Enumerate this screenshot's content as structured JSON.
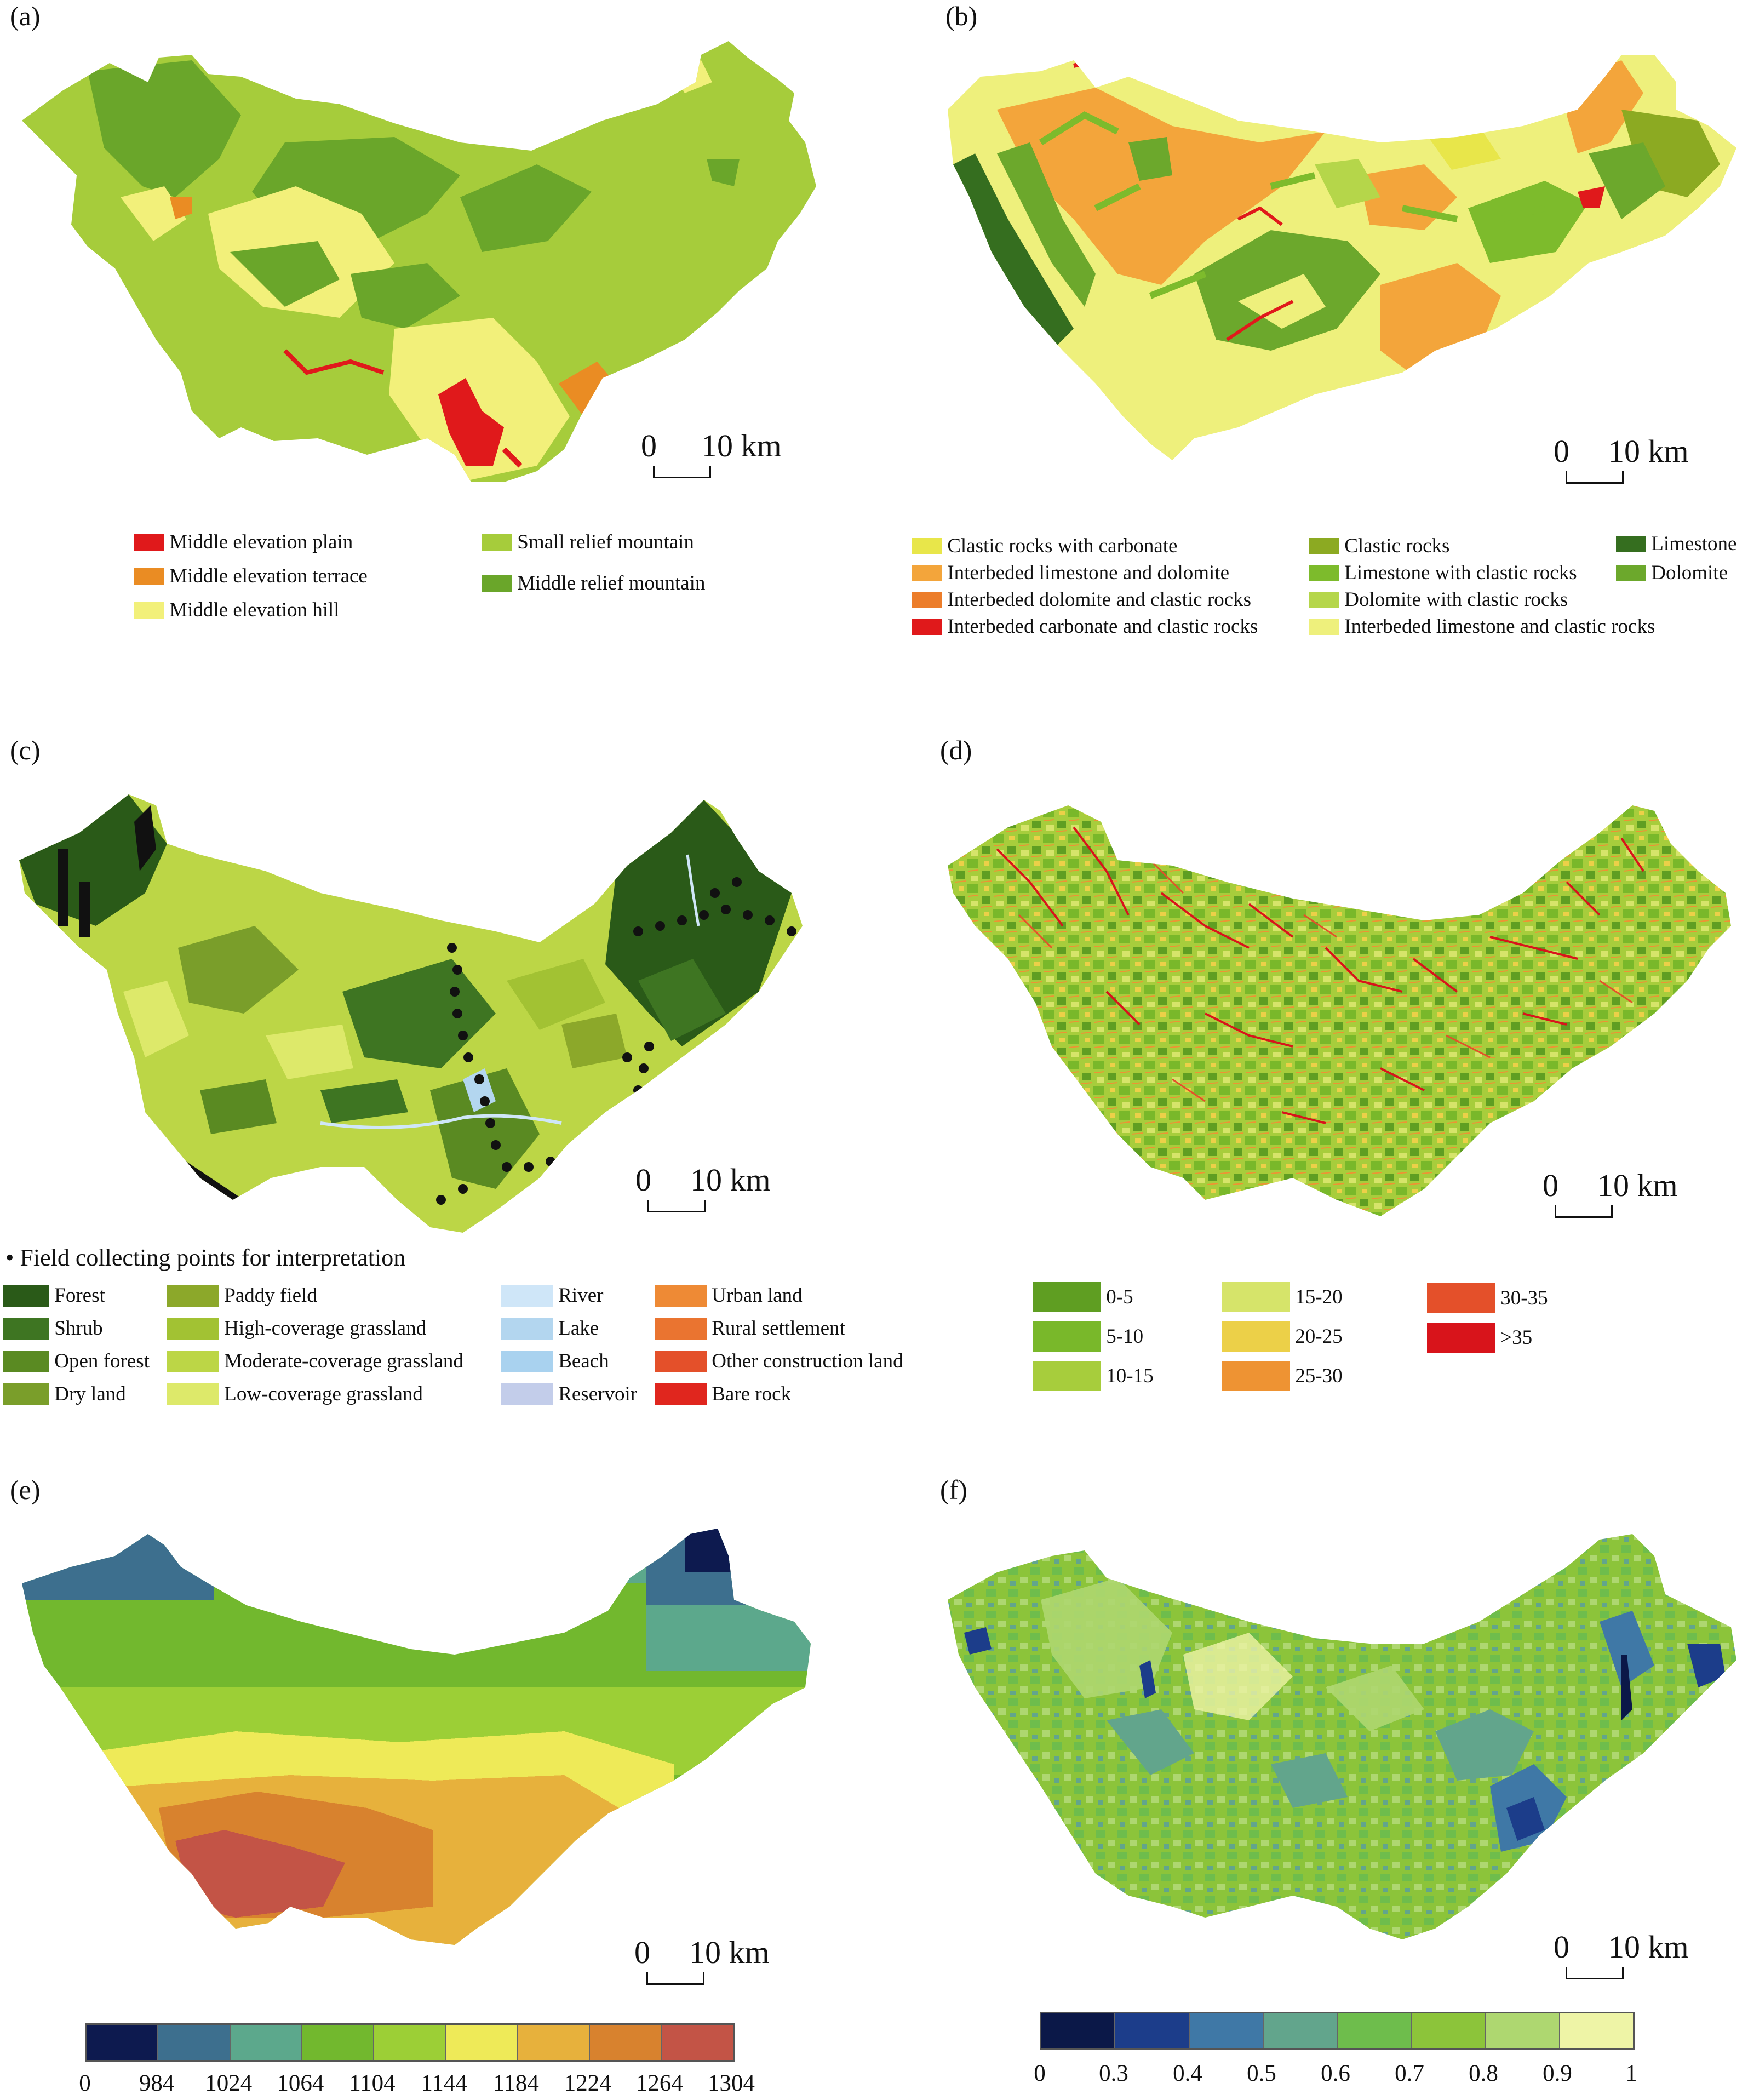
{
  "panels": {
    "a": {
      "label": "(a)",
      "scale": {
        "zero": "0",
        "dist": "10 km"
      },
      "legend": [
        {
          "label": "Middle elevation plain",
          "color": "#e0191b"
        },
        {
          "label": "Middle elevation terrace",
          "color": "#ea8c23"
        },
        {
          "label": "Middle elevation hill",
          "color": "#f2f07a"
        },
        {
          "label": "Small relief mountain",
          "color": "#a6cc3b"
        },
        {
          "label": "Middle relief mountain",
          "color": "#6aa62a"
        }
      ]
    },
    "b": {
      "label": "(b)",
      "scale": {
        "zero": "0",
        "dist": "10 km"
      },
      "legend": [
        {
          "label": "Clastic rocks with carbonate",
          "color": "#e8e64a"
        },
        {
          "label": "Interbeded limestone and dolomite",
          "color": "#f3a53b"
        },
        {
          "label": "Interbeded dolomite and clastic rocks",
          "color": "#ec7d2a"
        },
        {
          "label": "Interbeded carbonate and clastic rocks",
          "color": "#e0191b"
        },
        {
          "label": "Clastic rocks",
          "color": "#8caa22"
        },
        {
          "label": "Limestone with clastic rocks",
          "color": "#7dbb2c"
        },
        {
          "label": "Dolomite with clastic rocks",
          "color": "#b5d64a"
        },
        {
          "label": "Interbeded limestone and clastic rocks",
          "color": "#eef07c"
        },
        {
          "label": "Limestone",
          "color": "#356e1f"
        },
        {
          "label": "Dolomite",
          "color": "#6ca82c"
        }
      ]
    },
    "c": {
      "label": "(c)",
      "scale": {
        "zero": "0",
        "dist": "10 km"
      },
      "points_note": "• Field collecting points for interpretation",
      "legend": [
        {
          "label": "Forest",
          "color": "#2a5a18"
        },
        {
          "label": "Shrub",
          "color": "#3e7522"
        },
        {
          "label": "Open forest",
          "color": "#5a8a22"
        },
        {
          "label": "Dry land",
          "color": "#7a9e2a"
        },
        {
          "label": "Paddy field",
          "color": "#8ca82a"
        },
        {
          "label": "High-coverage grassland",
          "color": "#a2c233"
        },
        {
          "label": "Moderate-coverage grassland",
          "color": "#bcd646"
        },
        {
          "label": "Low-coverage grassland",
          "color": "#dde96a"
        },
        {
          "label": "River",
          "color": "#cfe6f8"
        },
        {
          "label": "Lake",
          "color": "#b3d6ef"
        },
        {
          "label": "Beach",
          "color": "#a9d2ef"
        },
        {
          "label": "Reservoir",
          "color": "#c3cdea"
        },
        {
          "label": "Urban land",
          "color": "#ee8a35"
        },
        {
          "label": "Rural settlement",
          "color": "#ea7430"
        },
        {
          "label": "Other construction land",
          "color": "#e4502a"
        },
        {
          "label": "Bare rock",
          "color": "#e0261e"
        }
      ]
    },
    "d": {
      "label": "(d)",
      "scale": {
        "zero": "0",
        "dist": "10 km"
      },
      "legend": [
        {
          "label": "0-5",
          "color": "#5f9e22"
        },
        {
          "label": "5-10",
          "color": "#79b82a"
        },
        {
          "label": "10-15",
          "color": "#a7cd3c"
        },
        {
          "label": "15-20",
          "color": "#d6e46a"
        },
        {
          "label": "20-25",
          "color": "#ecd048"
        },
        {
          "label": "25-30",
          "color": "#ee9333"
        },
        {
          "label": "30-35",
          "color": "#e4502a"
        },
        {
          "label": ">35",
          "color": "#d8141b"
        }
      ]
    },
    "e": {
      "label": "(e)",
      "scale": {
        "zero": "0",
        "dist": "10 km"
      },
      "colorbar": {
        "colors": [
          "#0d1a4f",
          "#3d6f8e",
          "#5ca88c",
          "#72b82e",
          "#9ccf36",
          "#eeea58",
          "#e7b13c",
          "#d8822e",
          "#c35446"
        ],
        "ticks": [
          "0",
          "984",
          "1024",
          "1064",
          "1104",
          "1144",
          "1184",
          "1224",
          "1264",
          "1304"
        ]
      }
    },
    "f": {
      "label": "(f)",
      "scale": {
        "zero": "0",
        "dist": "10 km"
      },
      "colorbar": {
        "colors": [
          "#0b1848",
          "#1c3d8a",
          "#3f78a6",
          "#62a58c",
          "#6ebd4c",
          "#8cc43a",
          "#aed770",
          "#eef4a6"
        ],
        "ticks": [
          "0",
          "0.3",
          "0.4",
          "0.5",
          "0.6",
          "0.7",
          "0.8",
          "0.9",
          "1"
        ]
      }
    }
  }
}
